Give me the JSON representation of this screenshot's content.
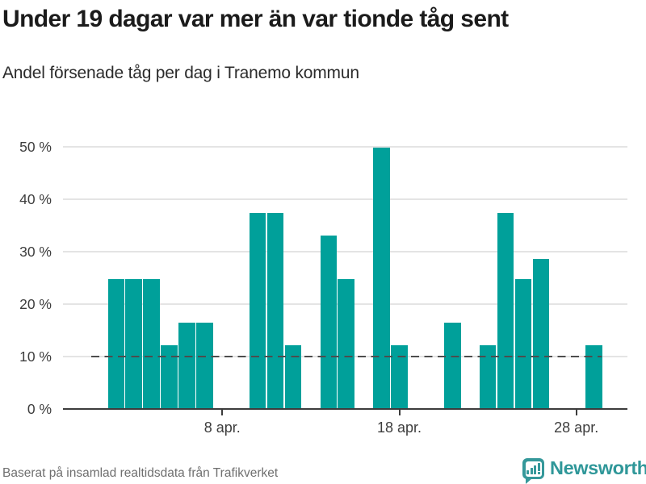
{
  "header": {
    "title": "Under 19 dagar var mer än var tionde tåg sent",
    "subtitle": "Andel försenade tåg per dag i Tranemo kommun"
  },
  "chart_data": {
    "type": "bar",
    "title": "Under 19 dagar var mer än var tionde tåg sent",
    "subtitle": "Andel försenade tåg per dag i Tranemo kommun",
    "unit": "%",
    "month": "april",
    "ylim": [
      0,
      50
    ],
    "grid": true,
    "legend": "none",
    "reference_line": {
      "value": 10,
      "style": "dashed"
    },
    "y_ticks": [
      {
        "value": 0,
        "label": "0 %"
      },
      {
        "value": 10,
        "label": "10 %"
      },
      {
        "value": 20,
        "label": "20 %"
      },
      {
        "value": 30,
        "label": "30 %"
      },
      {
        "value": 40,
        "label": "40 %"
      },
      {
        "value": 50,
        "label": "50 %"
      }
    ],
    "x_ticks": [
      {
        "day": 8,
        "label": "8 apr."
      },
      {
        "day": 18,
        "label": "18 apr."
      },
      {
        "day": 28,
        "label": "28 apr."
      }
    ],
    "points": [
      {
        "day": 2,
        "value": 24.7
      },
      {
        "day": 3,
        "value": 24.7
      },
      {
        "day": 4,
        "value": 24.7
      },
      {
        "day": 5,
        "value": 12.2
      },
      {
        "day": 6,
        "value": 16.5
      },
      {
        "day": 7,
        "value": 16.5
      },
      {
        "day": 10,
        "value": 37.3
      },
      {
        "day": 11,
        "value": 37.3
      },
      {
        "day": 12,
        "value": 12.2
      },
      {
        "day": 14,
        "value": 33.1
      },
      {
        "day": 15,
        "value": 24.7
      },
      {
        "day": 17,
        "value": 49.8
      },
      {
        "day": 18,
        "value": 12.2
      },
      {
        "day": 21,
        "value": 16.5
      },
      {
        "day": 23,
        "value": 12.2
      },
      {
        "day": 24,
        "value": 37.3
      },
      {
        "day": 25,
        "value": 24.7
      },
      {
        "day": 26,
        "value": 28.5
      },
      {
        "day": 29,
        "value": 12.2
      }
    ],
    "colors": {
      "bar": "#00a09a",
      "reference_line": "#4d4d4d",
      "gridline": "#e4e4e4",
      "axis": "#3c3c3c",
      "brand": "#2f9799"
    }
  },
  "footer": {
    "source": "Baserat på insamlad realtidsdata från Trafikverket",
    "brand": "Newsworthy"
  }
}
